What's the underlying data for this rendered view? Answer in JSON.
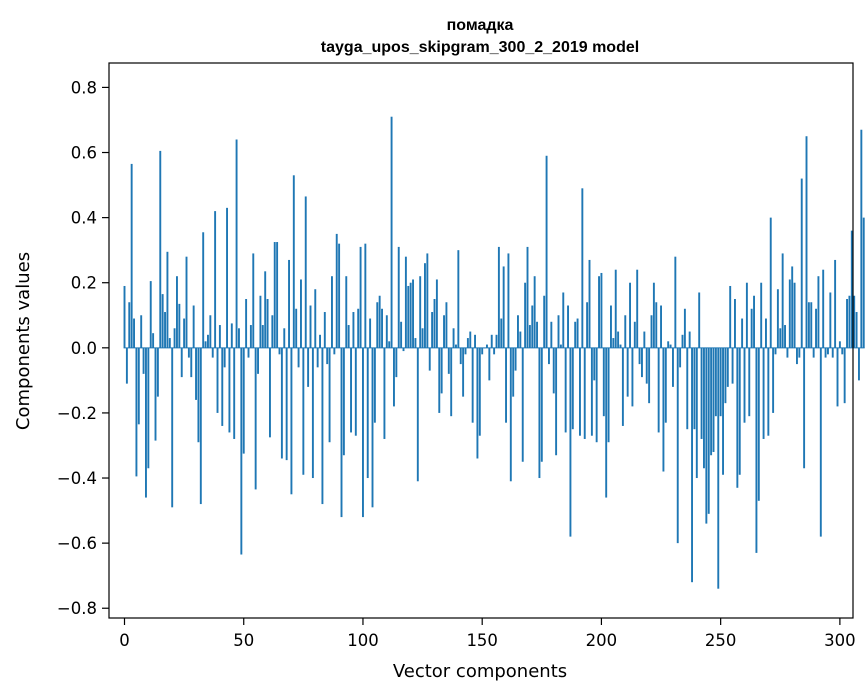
{
  "chart_data": {
    "type": "bar",
    "title": "помадка",
    "subtitle": "tayga_upos_skipgram_300_2_2019 model",
    "xlabel": "Vector components",
    "ylabel": "Components values",
    "xlim": [
      -6.5,
      305.5
    ],
    "ylim": [
      -0.83,
      0.875
    ],
    "xticks": [
      0,
      50,
      100,
      150,
      200,
      250,
      300
    ],
    "xtick_labels": [
      "0",
      "50",
      "100",
      "150",
      "200",
      "250",
      "300"
    ],
    "yticks": [
      -0.8,
      -0.6,
      -0.4,
      -0.2,
      0.0,
      0.2,
      0.4,
      0.6,
      0.8
    ],
    "ytick_labels": [
      "−0.8",
      "−0.6",
      "−0.4",
      "−0.2",
      "0.0",
      "0.2",
      "0.4",
      "0.6",
      "0.8"
    ],
    "bar_color": "#1f77b4",
    "grid": false,
    "series": [
      {
        "values": [
          0.19,
          -0.11,
          0.14,
          0.565,
          0.09,
          -0.395,
          -0.235,
          0.1,
          -0.08,
          -0.46,
          -0.37,
          0.205,
          0.045,
          -0.285,
          -0.15,
          0.605,
          0.165,
          0.11,
          0.295,
          0.03,
          -0.49,
          0.06,
          0.22,
          0.135,
          -0.09,
          0.09,
          0.28,
          -0.03,
          -0.09,
          0.13,
          -0.16,
          -0.29,
          -0.48,
          0.355,
          0.02,
          0.04,
          0.1,
          -0.03,
          0.42,
          -0.2,
          0.07,
          -0.24,
          -0.06,
          0.43,
          -0.26,
          0.075,
          -0.28,
          0.64,
          0.06,
          -0.635,
          -0.325,
          0.15,
          -0.03,
          0.07,
          0.29,
          -0.435,
          -0.08,
          0.16,
          0.07,
          0.235,
          0.15,
          -0.275,
          0.1,
          0.325,
          0.325,
          -0.02,
          -0.34,
          0.06,
          -0.345,
          0.27,
          -0.45,
          0.53,
          0.12,
          -0.06,
          0.21,
          -0.39,
          0.465,
          -0.12,
          0.13,
          -0.4,
          0.18,
          -0.06,
          0.04,
          -0.48,
          0.11,
          -0.05,
          -0.29,
          0.22,
          -0.02,
          0.35,
          0.32,
          -0.52,
          -0.33,
          0.22,
          0.07,
          -0.26,
          0.11,
          -0.27,
          0.12,
          0.31,
          -0.52,
          0.32,
          -0.4,
          0.09,
          -0.49,
          -0.23,
          0.14,
          0.16,
          0.12,
          -0.28,
          0.1,
          0.02,
          0.71,
          -0.18,
          -0.09,
          0.31,
          0.08,
          -0.01,
          0.28,
          0.19,
          0.2,
          0.21,
          0.03,
          -0.41,
          0.22,
          0.06,
          0.26,
          0.29,
          -0.07,
          0.11,
          0.15,
          0.21,
          -0.2,
          -0.14,
          0.1,
          0.14,
          -0.08,
          -0.21,
          0.06,
          0.01,
          0.3,
          -0.05,
          -0.15,
          -0.02,
          0.03,
          0.05,
          -0.23,
          0.04,
          -0.34,
          -0.27,
          -0.02,
          0.0,
          0.01,
          -0.1,
          0.04,
          -0.02,
          0.04,
          0.31,
          0.09,
          0.25,
          -0.23,
          0.29,
          -0.41,
          -0.15,
          -0.07,
          0.1,
          0.05,
          -0.35,
          0.2,
          0.31,
          0.07,
          0.13,
          0.22,
          0.08,
          -0.4,
          -0.35,
          0.16,
          0.59,
          -0.05,
          0.08,
          -0.14,
          -0.33,
          0.1,
          0.01,
          0.17,
          -0.26,
          0.13,
          -0.58,
          -0.25,
          0.08,
          0.09,
          -0.27,
          0.49,
          -0.28,
          0.14,
          0.27,
          -0.27,
          -0.1,
          -0.29,
          0.22,
          0.23,
          -0.21,
          -0.46,
          -0.29,
          0.13,
          0.03,
          0.24,
          0.05,
          0.01,
          -0.24,
          0.1,
          -0.15,
          0.2,
          -0.18,
          0.08,
          0.24,
          -0.05,
          -0.09,
          0.05,
          -0.11,
          -0.17,
          0.1,
          0.2,
          0.14,
          -0.26,
          0.13,
          -0.38,
          -0.23,
          0.02,
          0.01,
          -0.12,
          0.28,
          -0.6,
          -0.06,
          0.04,
          0.12,
          -0.25,
          0.05,
          -0.72,
          -0.25,
          -0.4,
          0.17,
          -0.28,
          -0.37,
          -0.54,
          -0.51,
          -0.33,
          -0.32,
          -0.21,
          -0.74,
          -0.21,
          -0.39,
          -0.17,
          -0.12,
          0.19,
          -0.11,
          0.15,
          -0.43,
          -0.39,
          0.09,
          -0.23,
          0.2,
          -0.21,
          0.12,
          0.16,
          -0.63,
          -0.47,
          0.2,
          -0.28,
          0.09,
          -0.27,
          0.4,
          -0.2,
          -0.02,
          0.18,
          0.06,
          0.29,
          0.07,
          -0.03,
          0.21,
          0.25,
          0.2,
          -0.05,
          -0.03,
          0.52,
          -0.37,
          0.65,
          0.14,
          0.14,
          -0.03,
          0.12,
          0.22,
          -0.58,
          0.24,
          -0.03,
          -0.02,
          0.17,
          -0.03,
          0.27,
          -0.18,
          0.02,
          -0.02,
          -0.17,
          0.15,
          0.16,
          0.36,
          0.16,
          0.11,
          -0.1,
          0.67,
          0.4
        ]
      }
    ]
  }
}
